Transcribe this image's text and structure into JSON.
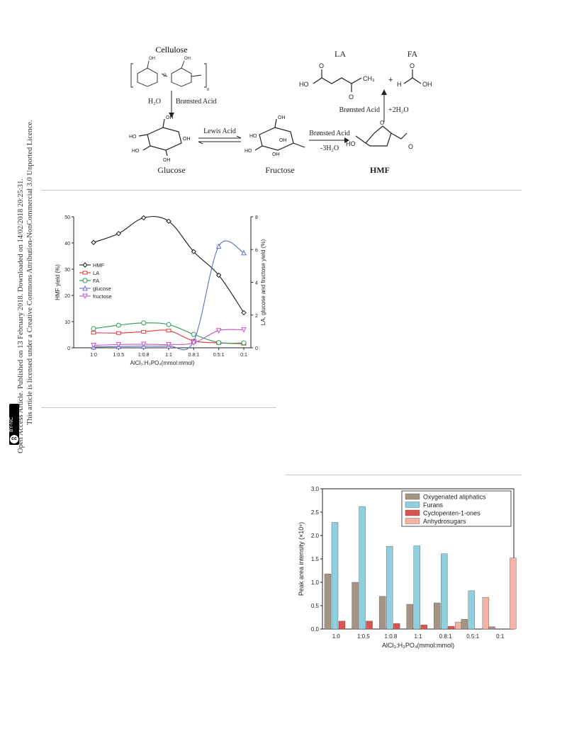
{
  "sidebar": {
    "license_line": "This article is licensed under a Creative Commons Attribution-NonCommercial 3.0 Unported Licence.",
    "access_line": "Open Access Article. Published on 13 February 2018. Downloaded on 14/02/2018 20:25:31.",
    "badge_cc": "cc",
    "badge_text": "BY-NC"
  },
  "scheme": {
    "cellulose": "Cellulose",
    "glucose": "Glucose",
    "fructose": "Fructose",
    "hmf": "HMF",
    "la": "LA",
    "fa": "FA",
    "h2o": "H₂O",
    "bronsted_acid": "Brønsted Acid",
    "lewis_acid": "Lewis Acid",
    "minus_3h2o": "-3H₂O",
    "plus_2h2o": "+2H₂O",
    "plus": "+",
    "oh": "OH",
    "ho": "HO",
    "h": "H",
    "o": "O",
    "ch3": "CH₃",
    "n": "n"
  },
  "chart_data": [
    {
      "type": "line",
      "categories": [
        "1:0",
        "1:0.5",
        "1:0.8",
        "1:1",
        "0.8:1",
        "0.5:1",
        "0:1"
      ],
      "xlabel": "AlCl₃:H₃PO₄(mmol:mmol)",
      "ylabel": "HMF yield (%)",
      "y2label": "LA, glucose and fructose yield (%)",
      "ylim": [
        0,
        50
      ],
      "yticks": [
        0,
        10,
        20,
        30,
        40,
        50
      ],
      "y2lim": [
        0,
        8
      ],
      "y2ticks": [
        0,
        2,
        4,
        6,
        8
      ],
      "legend_position": "left-center",
      "series": [
        {
          "name": "HMF",
          "axis": "left",
          "color": "#1a1a1a",
          "marker": "diamond",
          "values": [
            40.2,
            43.6,
            49.6,
            48.3,
            36.7,
            27.7,
            13.4
          ]
        },
        {
          "name": "LA",
          "axis": "right",
          "color": "#e0393e",
          "marker": "square",
          "values": [
            0.92,
            0.9,
            0.98,
            1.05,
            0.42,
            0.3,
            0.25
          ]
        },
        {
          "name": "FA",
          "axis": "right",
          "color": "#2e9a4e",
          "marker": "circle",
          "values": [
            1.17,
            1.38,
            1.52,
            1.42,
            0.82,
            0.32,
            0.3
          ]
        },
        {
          "name": "glucose",
          "axis": "right",
          "color": "#5a6fc8",
          "marker": "triangle",
          "values": [
            0.05,
            0.08,
            0.1,
            0.12,
            0.4,
            6.2,
            5.8
          ]
        },
        {
          "name": "fructose",
          "axis": "right",
          "color": "#c651c6",
          "marker": "triangle-down",
          "values": [
            0.15,
            0.2,
            0.22,
            0.2,
            0.3,
            1.05,
            1.1
          ]
        }
      ]
    },
    {
      "type": "bar",
      "categories": [
        "1:0",
        "1:0.5",
        "1:0.8",
        "1:1",
        "0.8:1",
        "0.5:1",
        "0:1"
      ],
      "xlabel": "AlCl₃:H₃PO₄(mmol:mmol)",
      "ylabel": "Peak area intensity (×10⁹)",
      "ylim": [
        0,
        3.0
      ],
      "yticks": [
        0.0,
        0.5,
        1.0,
        1.5,
        2.0,
        2.5,
        3.0
      ],
      "legend_position": "top-right",
      "series": [
        {
          "name": "Oxygenated aliphatics",
          "color": "#a39486",
          "values": [
            1.18,
            1.0,
            0.7,
            0.53,
            0.56,
            0.21,
            0.05
          ]
        },
        {
          "name": "Furans",
          "color": "#8ecfe0",
          "values": [
            2.28,
            2.62,
            1.77,
            1.78,
            1.61,
            0.82,
            0.0
          ]
        },
        {
          "name": "Cyclopenten-1-ones",
          "color": "#d9534f",
          "values": [
            0.17,
            0.17,
            0.12,
            0.09,
            0.06,
            0.0,
            0.0
          ]
        },
        {
          "name": "Anhydrosugars",
          "color": "#f6b3a4",
          "values": [
            0.0,
            0.0,
            0.0,
            0.0,
            0.15,
            0.68,
            1.52
          ]
        }
      ]
    }
  ]
}
